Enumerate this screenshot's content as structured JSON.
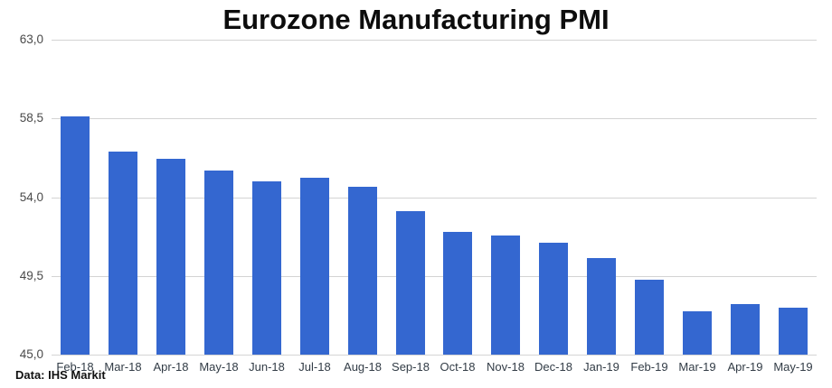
{
  "header": {
    "title": "Eurozone Manufacturing PMI"
  },
  "source_note": "Data: IHS Markit",
  "colors": {
    "bar": "#3467d0",
    "gridline": "#d4d4d4",
    "baseline": "#d4d4d4",
    "background": "#ffffff",
    "title_text": "#0d0d0d",
    "y_label_text": "#4a4a4a",
    "x_label_text": "#323c46"
  },
  "chart_data": {
    "type": "bar",
    "title": "Eurozone Manufacturing PMI",
    "categories": [
      "Feb-18",
      "Mar-18",
      "Apr-18",
      "May-18",
      "Jun-18",
      "Jul-18",
      "Aug-18",
      "Sep-18",
      "Oct-18",
      "Nov-18",
      "Dec-18",
      "Jan-19",
      "Feb-19",
      "Mar-19",
      "Apr-19",
      "May-19"
    ],
    "values": [
      58.6,
      56.6,
      56.2,
      55.5,
      54.9,
      55.1,
      54.6,
      53.2,
      52.0,
      51.8,
      51.4,
      50.5,
      49.3,
      47.5,
      47.9,
      47.7
    ],
    "xlabel": "",
    "ylabel": "",
    "ylim": [
      45.0,
      63.0
    ],
    "yticks": [
      63.0,
      58.5,
      54.0,
      49.5,
      45.0
    ],
    "ytick_labels": [
      "63,0",
      "58,5",
      "54,0",
      "49,5",
      "45,0"
    ],
    "grid": true,
    "legend": "none",
    "annotation": "Data: IHS Markit"
  }
}
